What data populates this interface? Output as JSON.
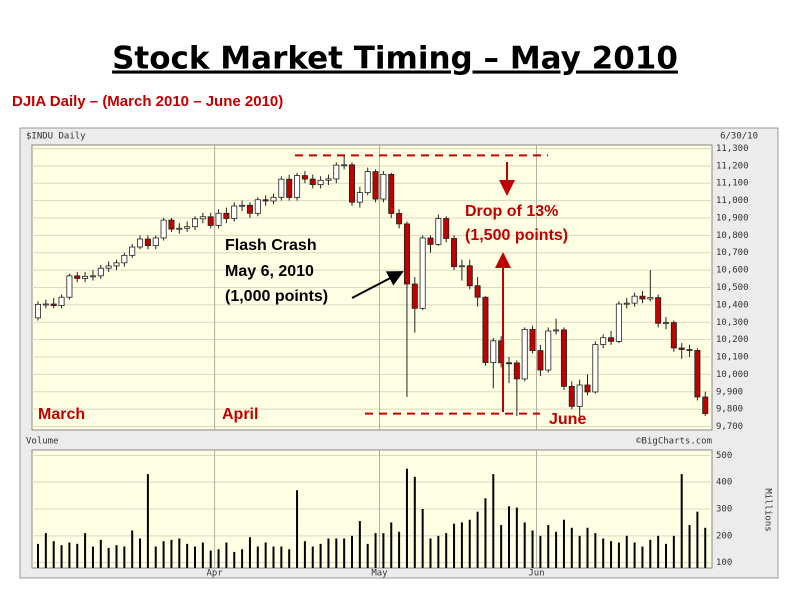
{
  "title": "Stock Market Timing – May 2010",
  "subtitle": "DJIA Daily – (March 2010 – June 2010)",
  "chart_data": [
    {
      "type": "candlestick",
      "title": "$INDU Daily",
      "date_label": "6/30/10",
      "source": "©BigCharts.com",
      "up_color": "#ffffff",
      "down_color": "#c00000",
      "open": [
        10325,
        10403,
        10405,
        10396,
        10444,
        10567,
        10552,
        10564,
        10567,
        10611,
        10624,
        10642,
        10685,
        10733,
        10779,
        10741,
        10785,
        10888,
        10836,
        10841,
        10850,
        10895,
        10907,
        10857,
        10927,
        10897,
        10969,
        10973,
        10927,
        11005,
        10998,
        11019,
        11123,
        11018,
        11144,
        11124,
        11092,
        11117,
        11125,
        11204,
        11206,
        10991,
        11046,
        11167,
        11009,
        11151,
        10926,
        10866,
        10520,
        10380,
        10785,
        10748,
        10897,
        10782,
        10620,
        10625,
        10510,
        10444,
        10068,
        10193,
        10067,
        10066,
        9974,
        10259,
        10137,
        10025,
        10250,
        10256,
        9931,
        9816,
        9939,
        9899,
        10172,
        10211,
        10190,
        10405,
        10410,
        10450,
        10434,
        10442,
        10294,
        10298,
        10152,
        10143,
        10138,
        9870
      ],
      "high": [
        10420,
        10430,
        10440,
        10460,
        10580,
        10590,
        10590,
        10600,
        10630,
        10650,
        10660,
        10700,
        10750,
        10800,
        10800,
        10800,
        10900,
        10900,
        10870,
        10880,
        10910,
        10930,
        10930,
        10950,
        10960,
        10990,
        11000,
        10990,
        11020,
        11030,
        11040,
        11140,
        11150,
        11160,
        11170,
        11150,
        11140,
        11150,
        11220,
        11260,
        11220,
        11080,
        11190,
        11180,
        11170,
        11160,
        10950,
        10880,
        10560,
        10800,
        10800,
        10920,
        10910,
        10800,
        10660,
        10660,
        10560,
        10450,
        10210,
        10220,
        10100,
        10080,
        10270,
        10280,
        10170,
        10270,
        10320,
        10270,
        9960,
        9970,
        10000,
        10190,
        10230,
        10250,
        10420,
        10440,
        10470,
        10480,
        10600,
        10460,
        10330,
        10310,
        10180,
        10170,
        10150,
        9900
      ],
      "low": [
        10310,
        10380,
        10380,
        10380,
        10430,
        10530,
        10530,
        10540,
        10550,
        10590,
        10600,
        10620,
        10670,
        10720,
        10720,
        10720,
        10770,
        10820,
        10810,
        10820,
        10830,
        10870,
        10840,
        10840,
        10870,
        10880,
        10940,
        10900,
        10910,
        10970,
        10980,
        11000,
        11000,
        11000,
        11100,
        11070,
        11070,
        11090,
        11100,
        11180,
        10970,
        10960,
        11030,
        10990,
        10990,
        10900,
        10840,
        9870,
        10240,
        10370,
        10700,
        10740,
        10760,
        10600,
        10540,
        10490,
        10390,
        10050,
        9920,
        10040,
        9950,
        9760,
        9960,
        10120,
        9990,
        10010,
        10230,
        9910,
        9800,
        9760,
        9880,
        9890,
        10150,
        10170,
        10180,
        10380,
        10390,
        10410,
        10420,
        10270,
        10260,
        10130,
        10090,
        10100,
        9850,
        9760
      ],
      "close": [
        10403,
        10405,
        10396,
        10444,
        10567,
        10552,
        10564,
        10567,
        10611,
        10624,
        10642,
        10685,
        10733,
        10779,
        10741,
        10785,
        10888,
        10836,
        10841,
        10850,
        10895,
        10907,
        10857,
        10927,
        10897,
        10969,
        10973,
        10927,
        11005,
        10998,
        11019,
        11123,
        11018,
        11144,
        11124,
        11092,
        11117,
        11125,
        11204,
        11206,
        10991,
        11046,
        11167,
        11009,
        11151,
        10926,
        10866,
        10520,
        10380,
        10785,
        10748,
        10897,
        10782,
        10620,
        10625,
        10510,
        10444,
        10068,
        10193,
        10067,
        10066,
        9974,
        10259,
        10137,
        10025,
        10250,
        10256,
        9931,
        9816,
        9939,
        9899,
        10172,
        10211,
        10190,
        10405,
        10410,
        10450,
        10434,
        10442,
        10294,
        10298,
        10152,
        10143,
        10138,
        9870,
        9774
      ],
      "ylim": [
        9680,
        11320
      ],
      "yticks": [
        {
          "value": 9700,
          "label": "9,700"
        },
        {
          "value": 9800,
          "label": "9,800"
        },
        {
          "value": 9900,
          "label": "9,900"
        },
        {
          "value": 10000,
          "label": "10,000"
        },
        {
          "value": 10100,
          "label": "10,100"
        },
        {
          "value": 10200,
          "label": "10,200"
        },
        {
          "value": 10300,
          "label": "10,300"
        },
        {
          "value": 10400,
          "label": "10,400"
        },
        {
          "value": 10500,
          "label": "10,500"
        },
        {
          "value": 10600,
          "label": "10,600"
        },
        {
          "value": 10700,
          "label": "10,700"
        },
        {
          "value": 10800,
          "label": "10,800"
        },
        {
          "value": 10900,
          "label": "10,900"
        },
        {
          "value": 11000,
          "label": "11,000"
        },
        {
          "value": 11100,
          "label": "11,100"
        },
        {
          "value": 11200,
          "label": "11,200"
        },
        {
          "value": 11300,
          "label": "11,300"
        }
      ],
      "annotations": [
        {
          "text": "Flash Crash",
          "color": "#000000"
        },
        {
          "text": "May 6, 2010",
          "color": "#000000"
        },
        {
          "text": "(1,000 points)",
          "color": "#000000"
        },
        {
          "text": "Drop of 13%",
          "color": "#c00000"
        },
        {
          "text": "(1,500 points)",
          "color": "#c00000"
        },
        {
          "text": "March",
          "color": "#c00000"
        },
        {
          "text": "April",
          "color": "#c00000"
        },
        {
          "text": "June",
          "color": "#c00000"
        }
      ]
    },
    {
      "type": "bar",
      "title": "Volume",
      "y_label": "Millions",
      "color": "#000000",
      "categories": [
        null,
        null,
        null,
        null,
        null,
        null,
        null,
        null,
        null,
        null,
        null,
        null,
        null,
        null,
        null,
        null,
        null,
        null,
        null,
        null,
        null,
        null,
        null,
        "Apr",
        null,
        null,
        null,
        null,
        null,
        null,
        null,
        null,
        null,
        null,
        null,
        null,
        null,
        null,
        null,
        null,
        null,
        null,
        null,
        null,
        "May",
        null,
        null,
        null,
        null,
        null,
        null,
        null,
        null,
        null,
        null,
        null,
        null,
        null,
        null,
        null,
        null,
        null,
        null,
        null,
        "Jun",
        null,
        null,
        null,
        null,
        null,
        null,
        null,
        null,
        null,
        null,
        null,
        null,
        null,
        null,
        null,
        null,
        null,
        null,
        null,
        null,
        null
      ],
      "values": [
        170,
        210,
        180,
        165,
        175,
        170,
        210,
        160,
        185,
        155,
        165,
        160,
        220,
        190,
        430,
        160,
        180,
        185,
        190,
        170,
        160,
        175,
        145,
        150,
        175,
        140,
        150,
        195,
        160,
        175,
        160,
        160,
        150,
        370,
        180,
        160,
        170,
        190,
        190,
        190,
        200,
        255,
        170,
        210,
        210,
        250,
        215,
        450,
        420,
        300,
        190,
        200,
        210,
        245,
        250,
        260,
        290,
        340,
        430,
        240,
        310,
        305,
        250,
        220,
        200,
        240,
        215,
        260,
        230,
        200,
        230,
        210,
        190,
        180,
        175,
        200,
        175,
        160,
        185,
        200,
        170,
        200,
        430,
        240,
        290,
        230
      ],
      "ylim": [
        80,
        520
      ],
      "yticks": [
        100,
        200,
        300,
        400,
        500
      ]
    }
  ]
}
